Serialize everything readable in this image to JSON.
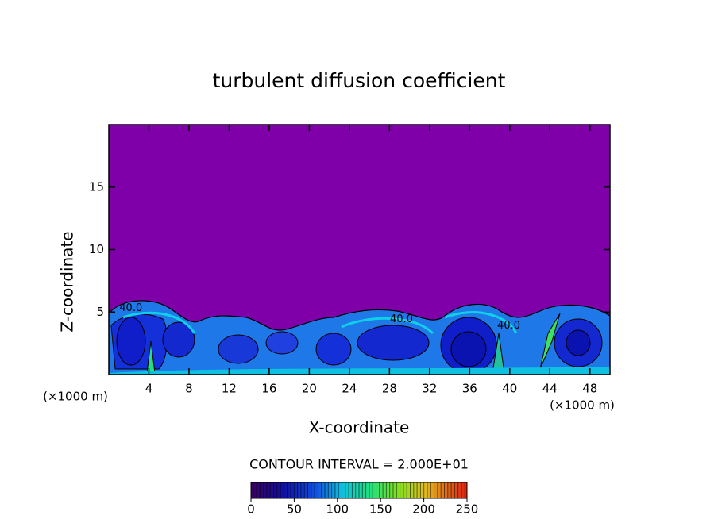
{
  "chart_data": {
    "type": "contour",
    "title": "turbulent diffusion coefficient",
    "xlabel": "X-coordinate",
    "ylabel": "Z-coordinate",
    "xunit": "(×1000 m)",
    "yunit": "(×1000 m)",
    "xlim": [
      0,
      50
    ],
    "ylim": [
      0,
      20
    ],
    "xticks": [
      4,
      8,
      12,
      16,
      20,
      24,
      28,
      32,
      36,
      40,
      44,
      48
    ],
    "yticks": [
      5,
      10,
      15
    ],
    "background_color": "#7f00a8",
    "contour_labels": [
      {
        "text": "40.0",
        "x": 2.2,
        "y": 5.3
      },
      {
        "text": "40.0",
        "x": 29.2,
        "y": 4.4
      },
      {
        "text": "40.0",
        "x": 39.9,
        "y": 3.9
      }
    ],
    "contour_interval": "CONTOUR INTERVAL = 2.000E+01",
    "colorbar": {
      "clim": [
        0,
        250
      ],
      "ticks": [
        0,
        50,
        100,
        150,
        200,
        250
      ]
    }
  }
}
